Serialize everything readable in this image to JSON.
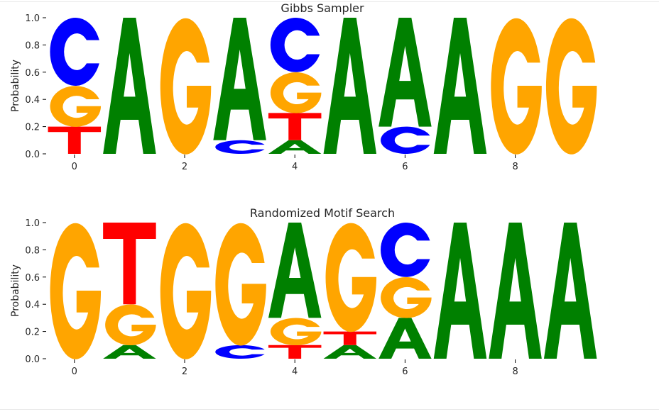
{
  "figure": {},
  "colors": {
    "A": "#008000",
    "C": "#0000ff",
    "G": "#ffa500",
    "T": "#ff0000",
    "axis": "#000000",
    "text": "#262626"
  },
  "chart_data": [
    {
      "type": "sequence-logo",
      "title": "Gibbs Sampler",
      "xlabel": "",
      "ylabel": "Probability",
      "x_ticks": [
        "0",
        "2",
        "4",
        "6",
        "8"
      ],
      "y_ticks": [
        "0.0",
        "0.2",
        "0.4",
        "0.6",
        "0.8",
        "1.0"
      ],
      "ylim": [
        0,
        1
      ],
      "xlim": [
        -0.5,
        9.5
      ],
      "grid": false,
      "positions": [
        {
          "x": 0,
          "letters": [
            {
              "base": "T",
              "p": 0.2
            },
            {
              "base": "G",
              "p": 0.3
            },
            {
              "base": "C",
              "p": 0.5
            }
          ]
        },
        {
          "x": 1,
          "letters": [
            {
              "base": "A",
              "p": 1.0
            }
          ]
        },
        {
          "x": 2,
          "letters": [
            {
              "base": "G",
              "p": 1.0
            }
          ]
        },
        {
          "x": 3,
          "letters": [
            {
              "base": "C",
              "p": 0.1
            },
            {
              "base": "A",
              "p": 0.9
            }
          ]
        },
        {
          "x": 4,
          "letters": [
            {
              "base": "A",
              "p": 0.1
            },
            {
              "base": "T",
              "p": 0.2
            },
            {
              "base": "G",
              "p": 0.3
            },
            {
              "base": "C",
              "p": 0.4
            }
          ]
        },
        {
          "x": 5,
          "letters": [
            {
              "base": "A",
              "p": 1.0
            }
          ]
        },
        {
          "x": 6,
          "letters": [
            {
              "base": "C",
              "p": 0.2
            },
            {
              "base": "A",
              "p": 0.8
            }
          ]
        },
        {
          "x": 7,
          "letters": [
            {
              "base": "A",
              "p": 1.0
            }
          ]
        },
        {
          "x": 8,
          "letters": [
            {
              "base": "G",
              "p": 1.0
            }
          ]
        },
        {
          "x": 9,
          "letters": [
            {
              "base": "G",
              "p": 1.0
            }
          ]
        }
      ]
    },
    {
      "type": "sequence-logo",
      "title": "Randomized Motif Search",
      "xlabel": "",
      "ylabel": "Probability",
      "x_ticks": [
        "0",
        "2",
        "4",
        "6",
        "8"
      ],
      "y_ticks": [
        "0.0",
        "0.2",
        "0.4",
        "0.6",
        "0.8",
        "1.0"
      ],
      "ylim": [
        0,
        1
      ],
      "xlim": [
        -0.5,
        9.5
      ],
      "grid": false,
      "positions": [
        {
          "x": 0,
          "letters": [
            {
              "base": "G",
              "p": 1.0
            }
          ]
        },
        {
          "x": 1,
          "letters": [
            {
              "base": "A",
              "p": 0.1
            },
            {
              "base": "G",
              "p": 0.3
            },
            {
              "base": "T",
              "p": 0.6
            }
          ]
        },
        {
          "x": 2,
          "letters": [
            {
              "base": "G",
              "p": 1.0
            }
          ]
        },
        {
          "x": 3,
          "letters": [
            {
              "base": "C",
              "p": 0.1
            },
            {
              "base": "G",
              "p": 0.9
            }
          ]
        },
        {
          "x": 4,
          "letters": [
            {
              "base": "T",
              "p": 0.1
            },
            {
              "base": "G",
              "p": 0.2
            },
            {
              "base": "A",
              "p": 0.7
            }
          ]
        },
        {
          "x": 5,
          "letters": [
            {
              "base": "A",
              "p": 0.1
            },
            {
              "base": "T",
              "p": 0.1
            },
            {
              "base": "G",
              "p": 0.8
            }
          ]
        },
        {
          "x": 6,
          "letters": [
            {
              "base": "A",
              "p": 0.3
            },
            {
              "base": "G",
              "p": 0.3
            },
            {
              "base": "C",
              "p": 0.4
            }
          ]
        },
        {
          "x": 7,
          "letters": [
            {
              "base": "A",
              "p": 1.0
            }
          ]
        },
        {
          "x": 8,
          "letters": [
            {
              "base": "A",
              "p": 1.0
            }
          ]
        },
        {
          "x": 9,
          "letters": [
            {
              "base": "A",
              "p": 1.0
            }
          ]
        }
      ]
    }
  ]
}
